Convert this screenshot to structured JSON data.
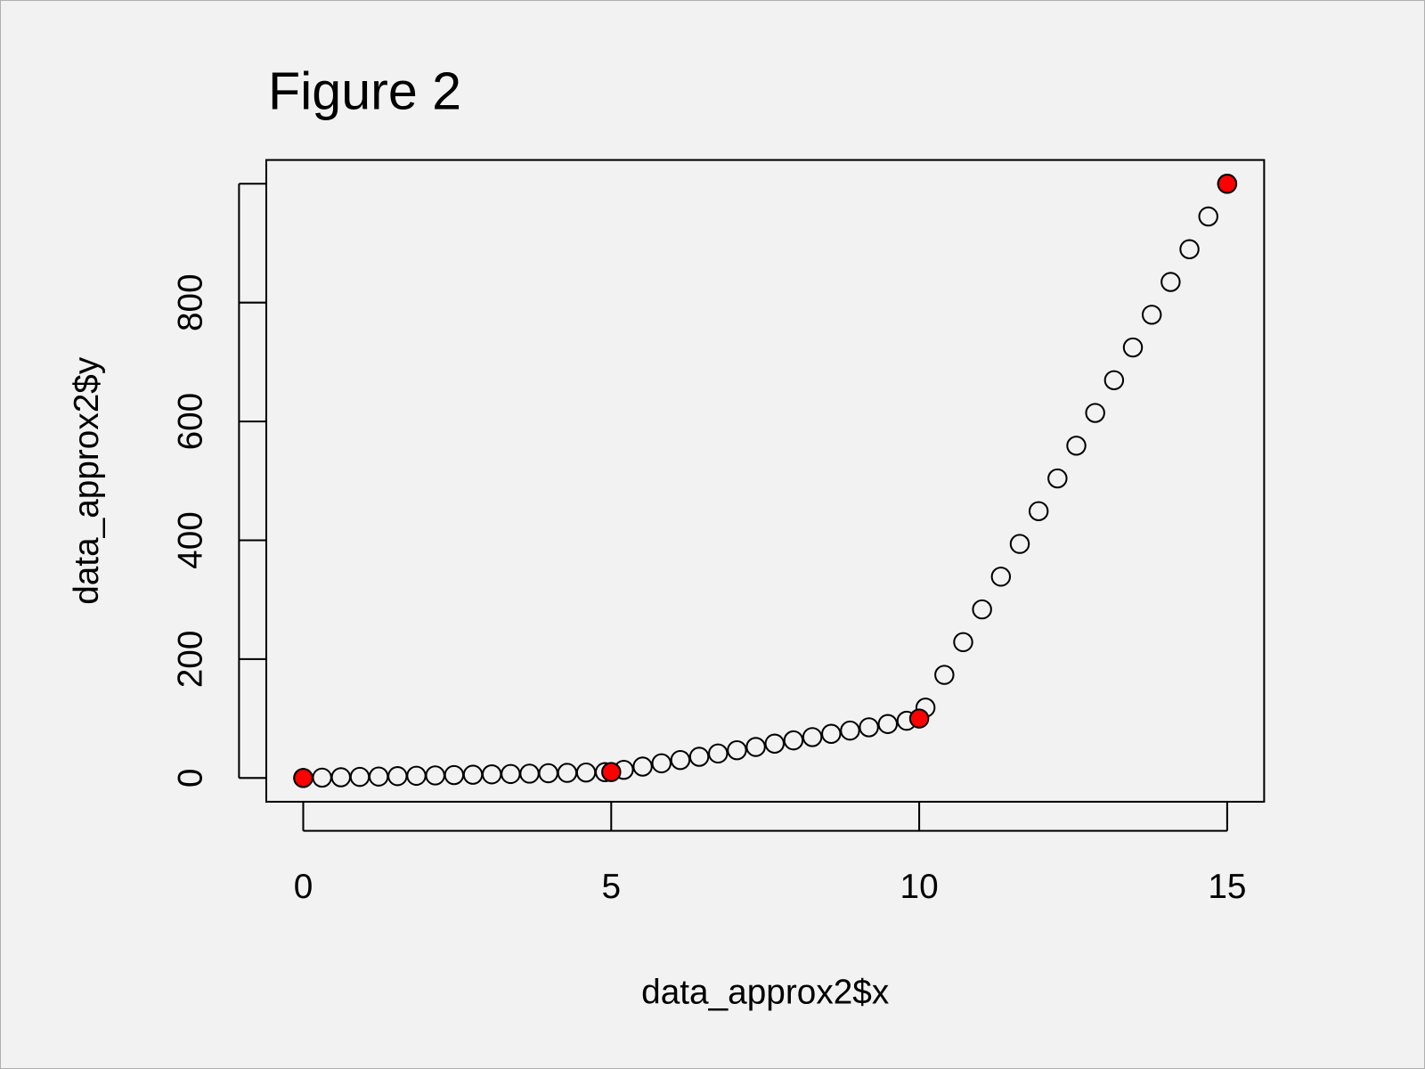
{
  "chart_data": {
    "type": "scatter",
    "title": "Figure 2",
    "xlabel": "data_approx2$x",
    "ylabel": "data_approx2$y",
    "xlim": [
      -0.6,
      15.6
    ],
    "ylim": [
      -40,
      1040
    ],
    "xticks": [
      0,
      5,
      10,
      15
    ],
    "yticks": [
      0,
      200,
      400,
      600,
      800,
      {
        "value": 1000,
        "label": null
      }
    ],
    "background": "#f2f2f2",
    "series": [
      {
        "color": "#000000",
        "fill": "none",
        "x": [
          0,
          0.3061,
          0.6122,
          0.9184,
          1.2245,
          1.5306,
          1.8367,
          2.1429,
          2.449,
          2.7551,
          3.0612,
          3.3673,
          3.6735,
          3.9796,
          4.2857,
          4.5918,
          4.898,
          5.2041,
          5.5102,
          5.8163,
          6.1224,
          6.4286,
          6.7347,
          7.0408,
          7.3469,
          7.6531,
          7.9592,
          8.2653,
          8.5714,
          8.8776,
          9.1837,
          9.4898,
          9.7959,
          10.102,
          10.4082,
          10.7143,
          11.0204,
          11.3265,
          11.6327,
          11.9388,
          12.2449,
          12.551,
          12.8571,
          13.1633,
          13.4694,
          13.7755,
          14.0816,
          14.3878,
          14.6939,
          15
        ],
        "values": [
          0,
          0.6,
          1.2,
          1.8,
          2.4,
          3.1,
          3.7,
          4.3,
          4.9,
          5.5,
          6.1,
          6.7,
          7.3,
          8.0,
          8.6,
          9.2,
          9.8,
          13.7,
          19.2,
          24.7,
          30.2,
          35.7,
          41.2,
          46.7,
          52.2,
          57.8,
          63.3,
          68.8,
          74.3,
          79.8,
          85.3,
          90.8,
          96.3,
          118.4,
          173.5,
          228.6,
          283.7,
          338.8,
          393.9,
          449.0,
          504.1,
          559.2,
          614.3,
          669.4,
          724.5,
          779.6,
          834.7,
          889.8,
          944.9,
          1000
        ]
      },
      {
        "color": "#000000",
        "fill": "#ff0000",
        "x": [
          0,
          5,
          10,
          15
        ],
        "values": [
          0,
          10,
          100,
          1000
        ]
      }
    ]
  }
}
